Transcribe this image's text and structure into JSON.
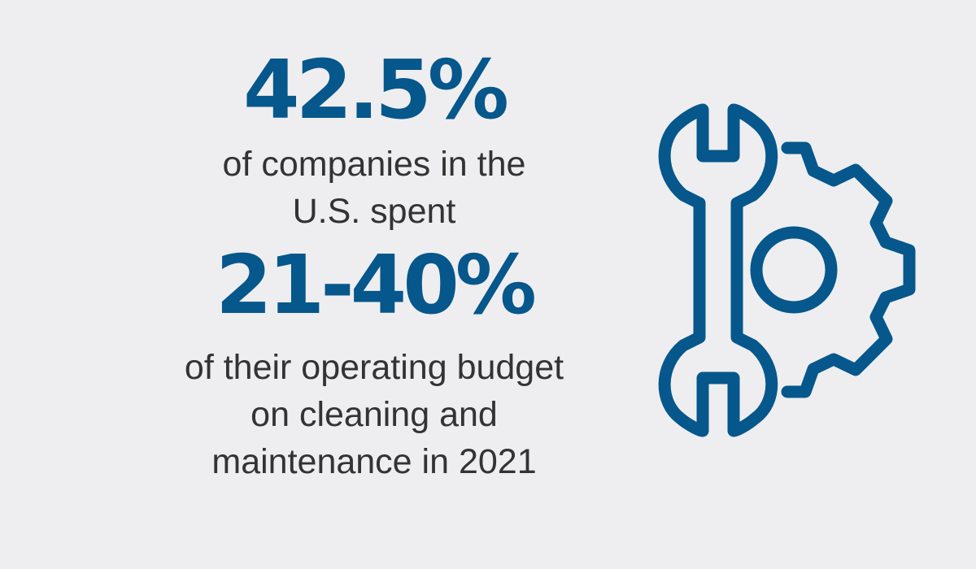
{
  "colors": {
    "background": "#eeeef0",
    "accent": "#06578b",
    "text": "#333333"
  },
  "stat_primary": {
    "value": "42.5%",
    "caption_lines": [
      "of companies in the",
      "U.S. spent"
    ]
  },
  "stat_secondary": {
    "value": "21-40%",
    "caption_lines": [
      "of their operating budget",
      "on cleaning and",
      "maintenance in 2021"
    ]
  },
  "illustration": {
    "icon": "wrench-and-gear-icon"
  }
}
